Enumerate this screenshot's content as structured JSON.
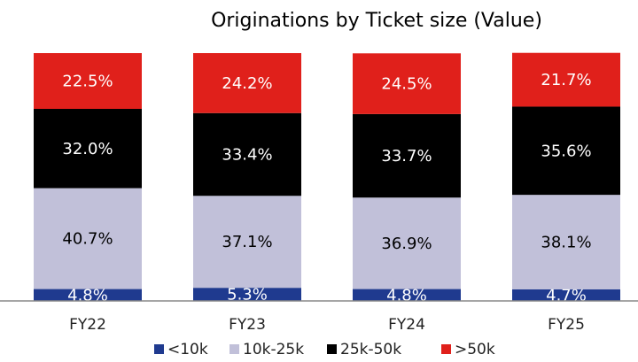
{
  "chart_data": {
    "type": "stacked_bar",
    "title": "Originations by Ticket size (Value)",
    "categories": [
      "FY22",
      "FY23",
      "FY24",
      "FY25"
    ],
    "ylim": [
      0,
      100
    ],
    "legend": "bottom",
    "series": [
      {
        "name": "<10k",
        "color": "#1f3a8f",
        "label_color": "#ffffff",
        "values": [
          4.8,
          5.3,
          4.8,
          4.7
        ],
        "value_labels": [
          "4.8%",
          "5.3%",
          "4.8%",
          "4.7%"
        ]
      },
      {
        "name": "10k-25k",
        "color": "#c1c0d9",
        "label_color": "#000000",
        "values": [
          40.7,
          37.1,
          36.9,
          38.1
        ],
        "value_labels": [
          "40.7%",
          "37.1%",
          "36.9%",
          "38.1%"
        ]
      },
      {
        "name": "25k-50k",
        "color": "#000000",
        "label_color": "#ffffff",
        "values": [
          32.0,
          33.4,
          33.7,
          35.6
        ],
        "value_labels": [
          "32.0%",
          "33.4%",
          "33.7%",
          "35.6%"
        ]
      },
      {
        "name": ">50k",
        "color": "#e0201b",
        "label_color": "#ffffff",
        "values": [
          22.5,
          24.2,
          24.5,
          21.7
        ],
        "value_labels": [
          "22.5%",
          "24.2%",
          "24.5%",
          "21.7%"
        ]
      }
    ]
  }
}
